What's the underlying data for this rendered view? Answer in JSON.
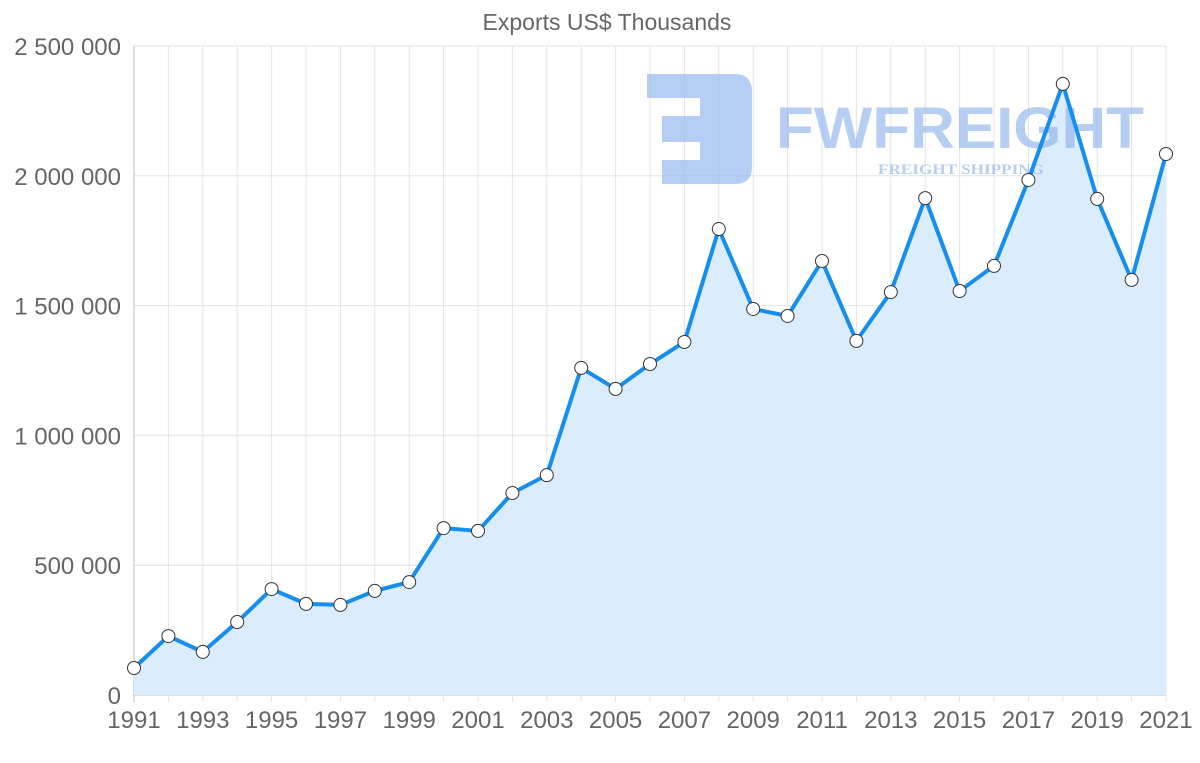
{
  "chart_data": {
    "type": "area",
    "title": "Exports US$ Thousands",
    "xlabel": "",
    "ylabel": "",
    "ylim": [
      0,
      2500000
    ],
    "yticks": [
      0,
      500000,
      1000000,
      1500000,
      2000000,
      2500000
    ],
    "ytick_labels": [
      "0",
      "500 000",
      "1 000 000",
      "1 500 000",
      "2 000 000",
      "2 500 000"
    ],
    "xtick_labels": [
      "1991",
      "1993",
      "1995",
      "1997",
      "1999",
      "2001",
      "2003",
      "2005",
      "2007",
      "2009",
      "2011",
      "2013",
      "2015",
      "2017",
      "2019",
      "2021"
    ],
    "grid": true,
    "x": [
      1991,
      1992,
      1993,
      1994,
      1995,
      1996,
      1997,
      1998,
      1999,
      2000,
      2001,
      2002,
      2003,
      2004,
      2005,
      2006,
      2007,
      2008,
      2009,
      2010,
      2011,
      2012,
      2013,
      2014,
      2015,
      2016,
      2017,
      2018,
      2019,
      2020,
      2021
    ],
    "series": [
      {
        "name": "Exports US$ Thousands",
        "color": "#168ef0",
        "fill": "#dbedfc",
        "values": [
          104000,
          227000,
          166000,
          281000,
          408000,
          351000,
          347000,
          401000,
          435000,
          643000,
          632000,
          778000,
          847000,
          1260000,
          1179000,
          1275000,
          1360000,
          1795000,
          1487000,
          1460000,
          1672000,
          1364000,
          1552000,
          1914000,
          1556000,
          1653000,
          1984000,
          2354000,
          1911000,
          1599000,
          2084000
        ]
      }
    ]
  },
  "watermark": {
    "brand": "FWFREIGHT",
    "tagline": "FREIGHT SHIPPING",
    "color": "#8fb4ec"
  }
}
